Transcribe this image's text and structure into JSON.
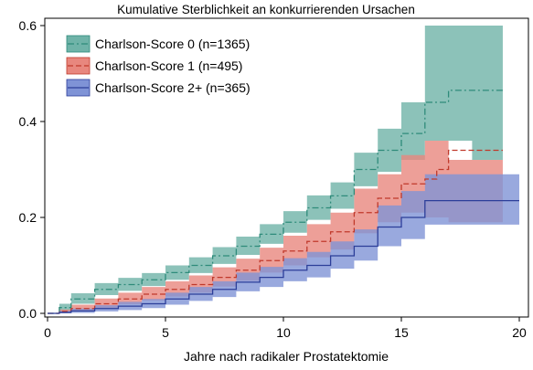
{
  "chart_data": {
    "type": "line",
    "title": "Kumulative Sterblichkeit an konkurrierenden Ursachen",
    "xlabel": "Jahre nach radikaler Prostatektomie",
    "ylabel": "",
    "xlim": [
      0,
      20
    ],
    "ylim": [
      0,
      0.62
    ],
    "xticks": [
      "0",
      "5",
      "10",
      "15",
      "20"
    ],
    "yticks": [
      "0.0",
      "0.2",
      "0.4",
      "0.6"
    ],
    "grid": false,
    "legend_position": "top-left",
    "series": [
      {
        "name": "Charlson-Score 0 (n=1365)",
        "color": "#2e8b7a",
        "band_color": "#6fb3a8",
        "line_style": "dash-dot",
        "x": [
          0,
          0.5,
          1,
          2,
          3,
          4,
          5,
          6,
          7,
          8,
          9,
          10,
          11,
          12,
          13,
          14,
          15,
          16,
          17,
          18,
          19,
          19.3
        ],
        "y": [
          0,
          0.012,
          0.03,
          0.05,
          0.06,
          0.07,
          0.085,
          0.1,
          0.12,
          0.14,
          0.165,
          0.19,
          0.22,
          0.245,
          0.3,
          0.34,
          0.375,
          0.44,
          0.465,
          0.465,
          0.465,
          0.465
        ],
        "lower": [
          0,
          0.005,
          0.02,
          0.038,
          0.047,
          0.057,
          0.07,
          0.084,
          0.103,
          0.122,
          0.145,
          0.168,
          0.195,
          0.218,
          0.265,
          0.295,
          0.32,
          0.36,
          0.36,
          0.32,
          0.32,
          0.32
        ],
        "upper": [
          0,
          0.02,
          0.042,
          0.063,
          0.074,
          0.084,
          0.1,
          0.117,
          0.138,
          0.16,
          0.186,
          0.213,
          0.246,
          0.273,
          0.335,
          0.385,
          0.44,
          0.6,
          0.6,
          0.6,
          0.6,
          0.6
        ]
      },
      {
        "name": "Charlson-Score 1 (n=495)",
        "color": "#c0392b",
        "band_color": "#e8877e",
        "line_style": "dashed",
        "x": [
          0,
          0.5,
          1,
          2,
          3,
          4,
          5,
          6,
          7,
          8,
          9,
          10,
          11,
          12,
          13,
          14,
          15,
          16,
          16.5,
          17,
          18,
          19,
          19.3
        ],
        "y": [
          0,
          0.004,
          0.01,
          0.02,
          0.03,
          0.04,
          0.05,
          0.06,
          0.075,
          0.09,
          0.11,
          0.13,
          0.15,
          0.17,
          0.21,
          0.24,
          0.27,
          0.28,
          0.3,
          0.34,
          0.34,
          0.34,
          0.34
        ],
        "lower": [
          0,
          0.001,
          0.004,
          0.011,
          0.019,
          0.027,
          0.035,
          0.043,
          0.056,
          0.068,
          0.085,
          0.1,
          0.117,
          0.133,
          0.167,
          0.19,
          0.21,
          0.2,
          0.2,
          0.19,
          0.19,
          0.19,
          0.19
        ],
        "upper": [
          0,
          0.008,
          0.018,
          0.031,
          0.043,
          0.055,
          0.067,
          0.079,
          0.096,
          0.114,
          0.137,
          0.162,
          0.186,
          0.21,
          0.26,
          0.29,
          0.33,
          0.36,
          0.36,
          0.32,
          0.32,
          0.32,
          0.32
        ]
      },
      {
        "name": "Charlson-Score 2+ (n=365)",
        "color": "#2c3e99",
        "band_color": "#7f93d6",
        "line_style": "solid",
        "x": [
          0,
          0.5,
          1,
          2,
          3,
          4,
          5,
          6,
          7,
          8,
          9,
          10,
          11,
          12,
          13,
          14,
          15,
          16,
          17,
          18,
          19,
          20
        ],
        "y": [
          0,
          0.002,
          0.005,
          0.01,
          0.015,
          0.02,
          0.03,
          0.04,
          0.05,
          0.065,
          0.075,
          0.09,
          0.1,
          0.12,
          0.14,
          0.18,
          0.2,
          0.235,
          0.235,
          0.235,
          0.235,
          0.235
        ],
        "lower": [
          0,
          0.0,
          0.001,
          0.004,
          0.007,
          0.011,
          0.018,
          0.026,
          0.034,
          0.046,
          0.055,
          0.067,
          0.075,
          0.093,
          0.11,
          0.14,
          0.155,
          0.185,
          0.185,
          0.185,
          0.185,
          0.185
        ],
        "upper": [
          0,
          0.005,
          0.01,
          0.017,
          0.024,
          0.03,
          0.043,
          0.055,
          0.067,
          0.085,
          0.097,
          0.115,
          0.128,
          0.15,
          0.175,
          0.225,
          0.255,
          0.29,
          0.29,
          0.29,
          0.29,
          0.29
        ]
      }
    ]
  }
}
